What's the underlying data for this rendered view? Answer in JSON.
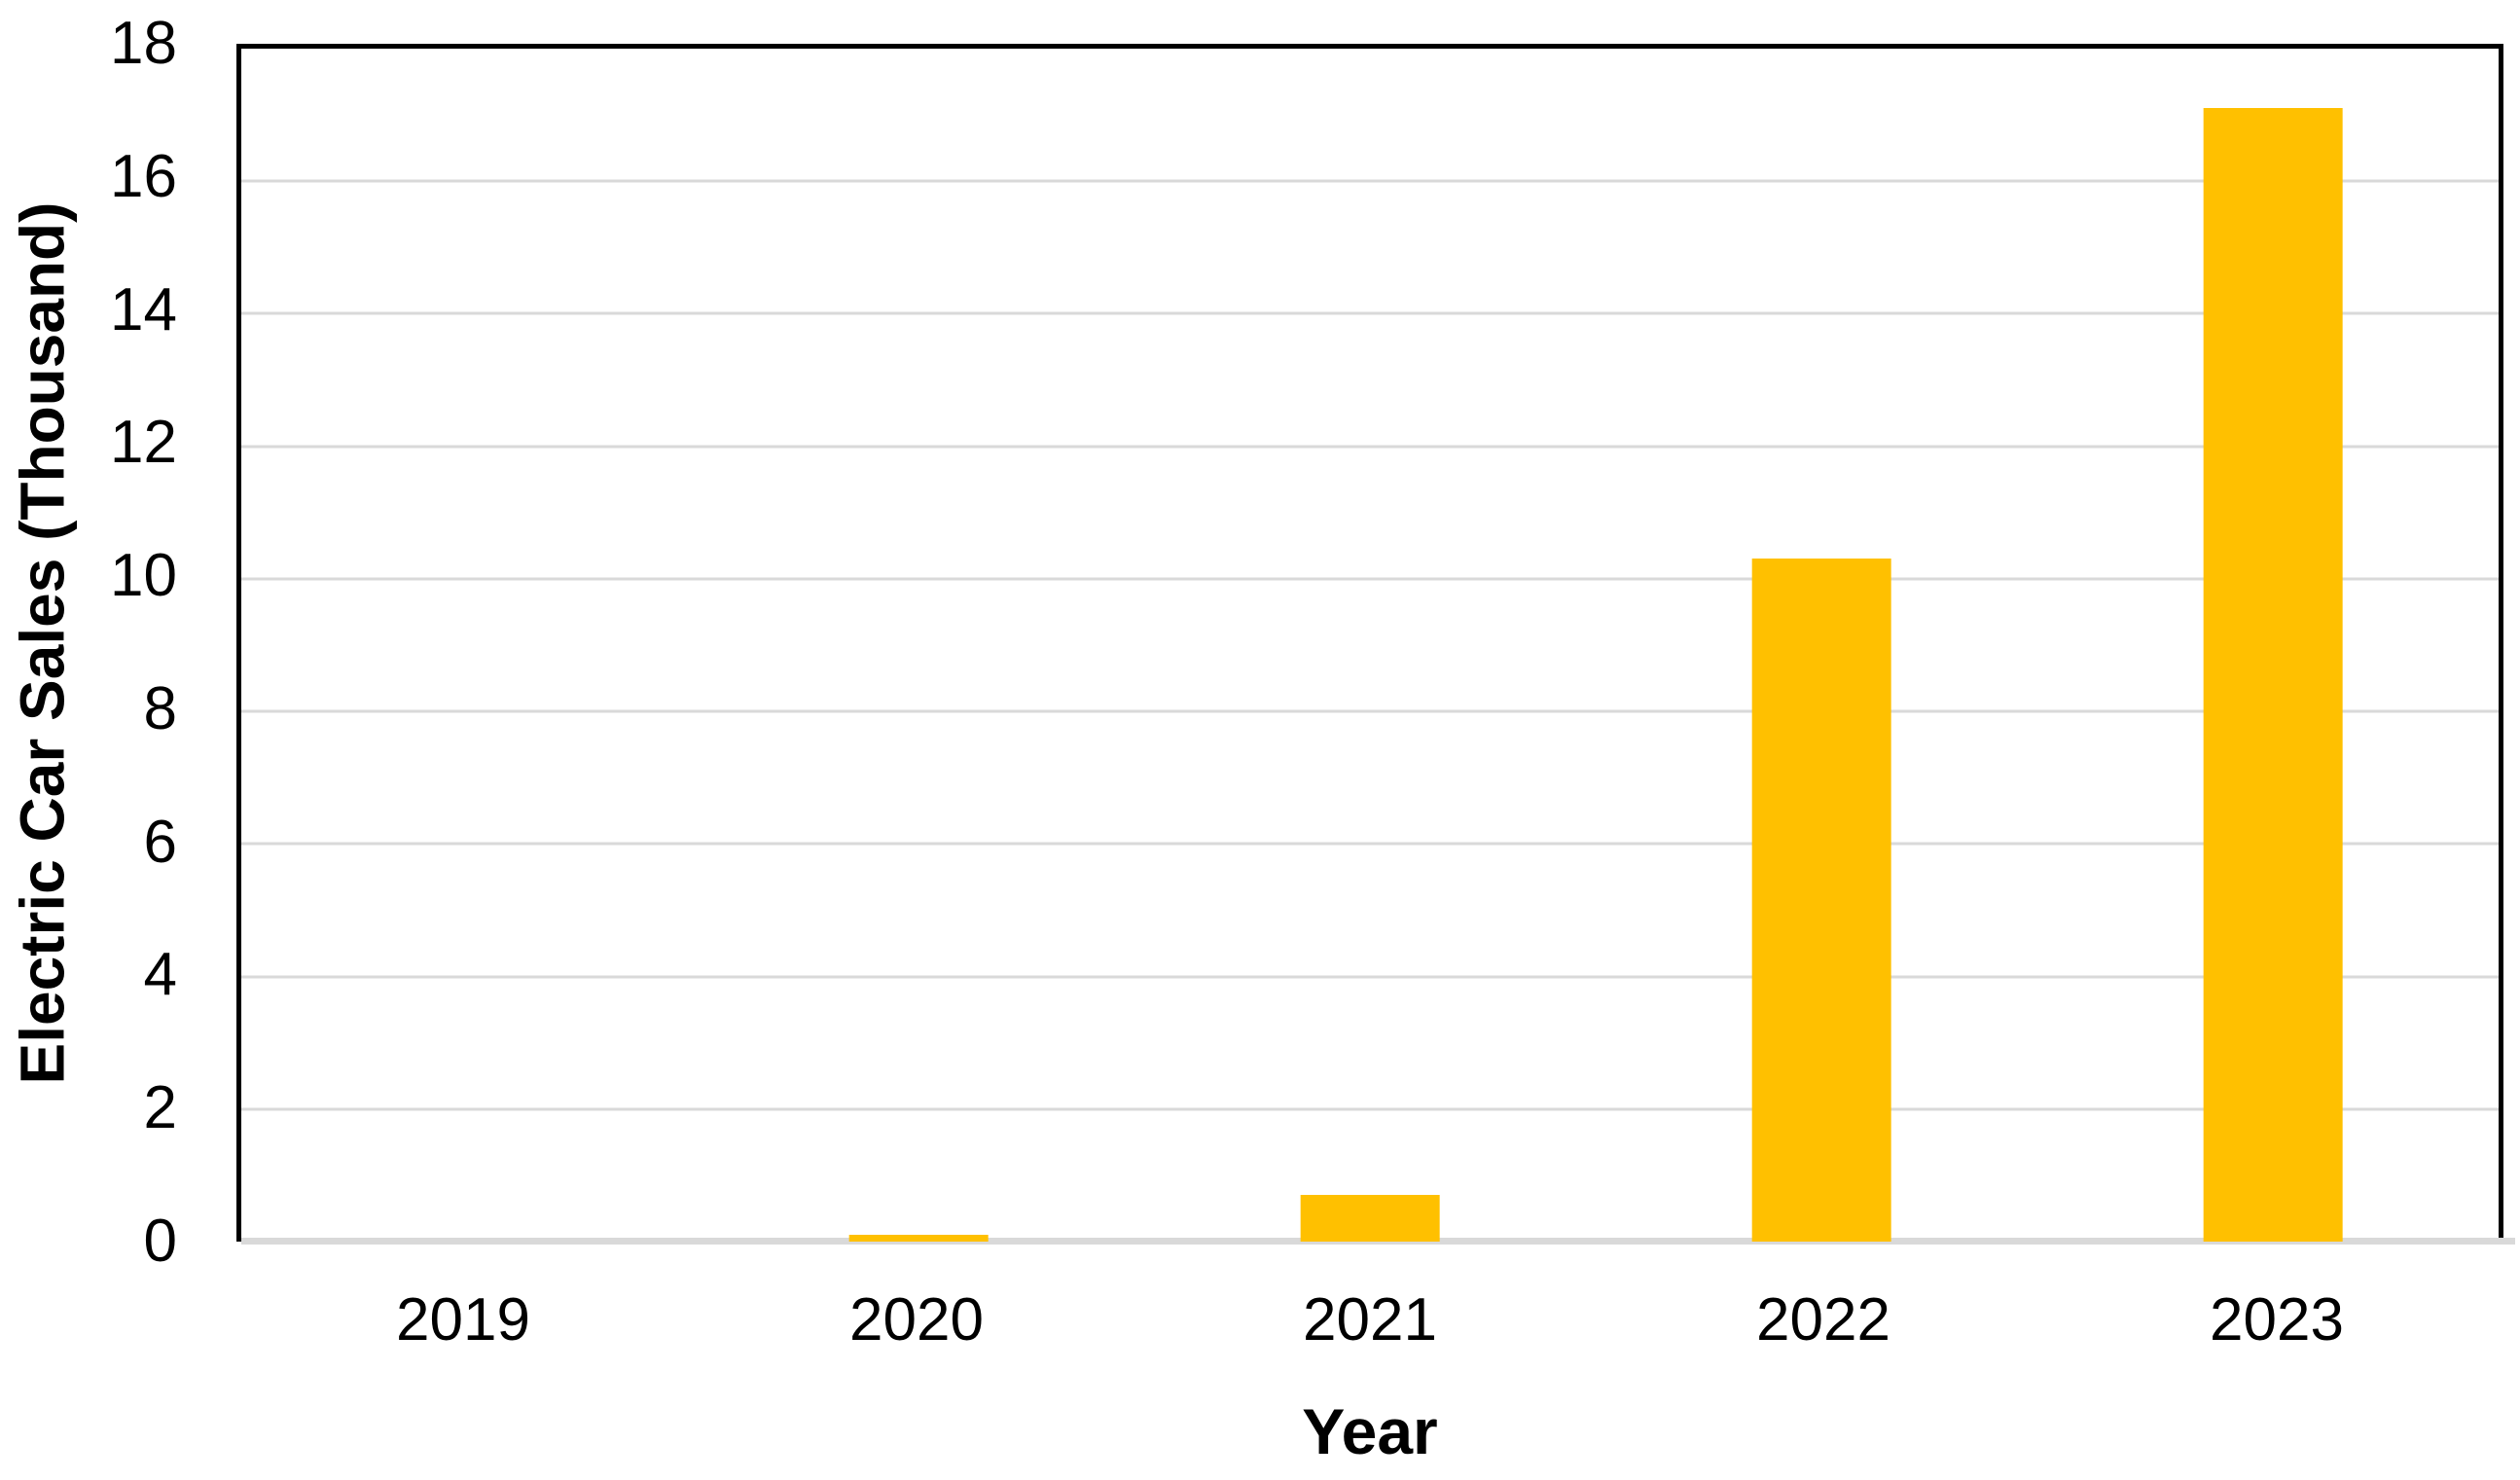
{
  "chart_data": {
    "type": "bar",
    "categories": [
      "2019",
      "2020",
      "2021",
      "2022",
      "2023"
    ],
    "values": [
      0,
      0.1,
      0.7,
      10.3,
      17.1
    ],
    "xlabel": "Year",
    "ylabel": "Electric Car Sales (Thousand)",
    "ylim": [
      0,
      18
    ],
    "yticks": [
      0,
      2,
      4,
      6,
      8,
      10,
      12,
      14,
      16,
      18
    ],
    "grid": true,
    "legend": false,
    "bar_color": "#FFC000",
    "gridline_color": "#D9D9D9",
    "axis_line_color": "#000000",
    "text_color": "#000000"
  }
}
